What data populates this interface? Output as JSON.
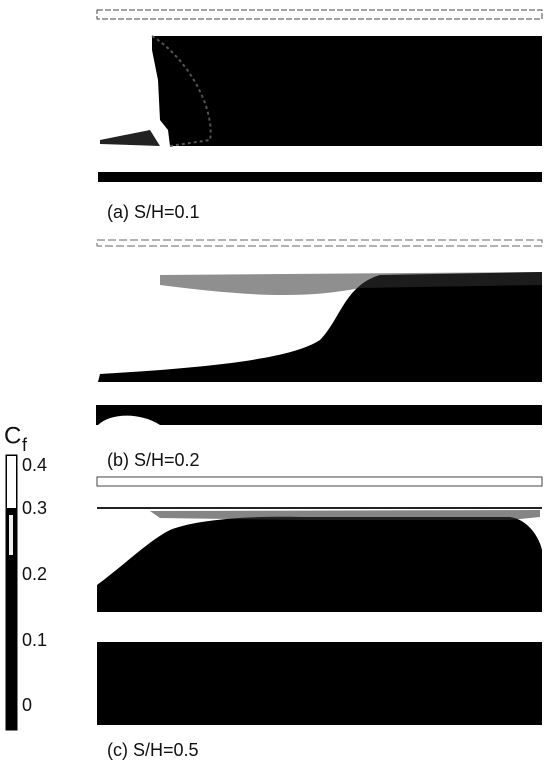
{
  "panels": [
    {
      "label": "(a) S/H=0.1"
    },
    {
      "label": "(b) S/H=0.2"
    },
    {
      "label": "(c) S/H=0.5"
    }
  ],
  "colorbar": {
    "symbol": "C",
    "subscript": "f",
    "ticks": [
      0.4,
      0.3,
      0.2,
      0.1,
      0
    ]
  }
}
